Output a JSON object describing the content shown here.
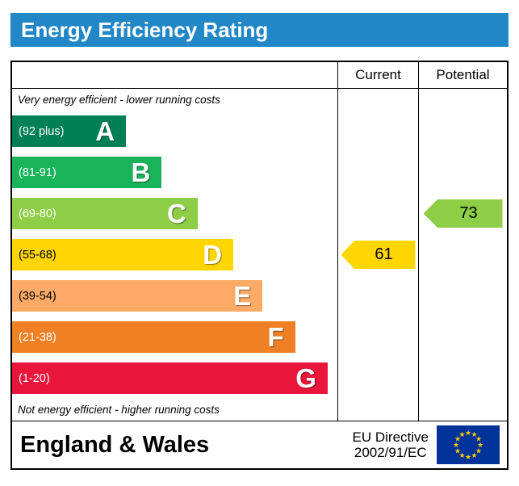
{
  "title": "Energy Efficiency Rating",
  "header": {
    "current": "Current",
    "potential": "Potential"
  },
  "notes": {
    "top": "Very energy efficient - lower running costs",
    "bottom": "Not energy efficient - higher running costs"
  },
  "footer": {
    "region": "England & Wales",
    "directive_line1": "EU Directive",
    "directive_line2": "2002/91/EC"
  },
  "colors": {
    "title_bg": "#2187c6",
    "title_text": "#ffffff",
    "flag_bg": "#003399",
    "flag_stars": "#ffcc00"
  },
  "chart_data": {
    "type": "bar",
    "title": "Energy Efficiency Rating",
    "bands": [
      {
        "letter": "A",
        "range": "(92 plus)",
        "min": 92,
        "max": 100,
        "color": "#008054",
        "text_color": "#ffffff",
        "width_pct": 35
      },
      {
        "letter": "B",
        "range": "(81-91)",
        "min": 81,
        "max": 91,
        "color": "#19b459",
        "text_color": "#ffffff",
        "width_pct": 46
      },
      {
        "letter": "C",
        "range": "(69-80)",
        "min": 69,
        "max": 80,
        "color": "#8dce46",
        "text_color": "#ffffff",
        "width_pct": 57
      },
      {
        "letter": "D",
        "range": "(55-68)",
        "min": 55,
        "max": 68,
        "color": "#ffd500",
        "text_color": "#000000",
        "width_pct": 68
      },
      {
        "letter": "E",
        "range": "(39-54)",
        "min": 39,
        "max": 54,
        "color": "#fcaa65",
        "text_color": "#000000",
        "width_pct": 77
      },
      {
        "letter": "F",
        "range": "(21-38)",
        "min": 21,
        "max": 38,
        "color": "#ef8023",
        "text_color": "#ffffff",
        "width_pct": 87
      },
      {
        "letter": "G",
        "range": "(1-20)",
        "min": 1,
        "max": 20,
        "color": "#e9153b",
        "text_color": "#ffffff",
        "width_pct": 97
      }
    ],
    "markers": [
      {
        "name": "Current",
        "value": 61,
        "band": "D",
        "color": "#ffd500"
      },
      {
        "name": "Potential",
        "value": 73,
        "band": "C",
        "color": "#8dce46"
      }
    ],
    "legend_position": "none",
    "grid": false
  }
}
